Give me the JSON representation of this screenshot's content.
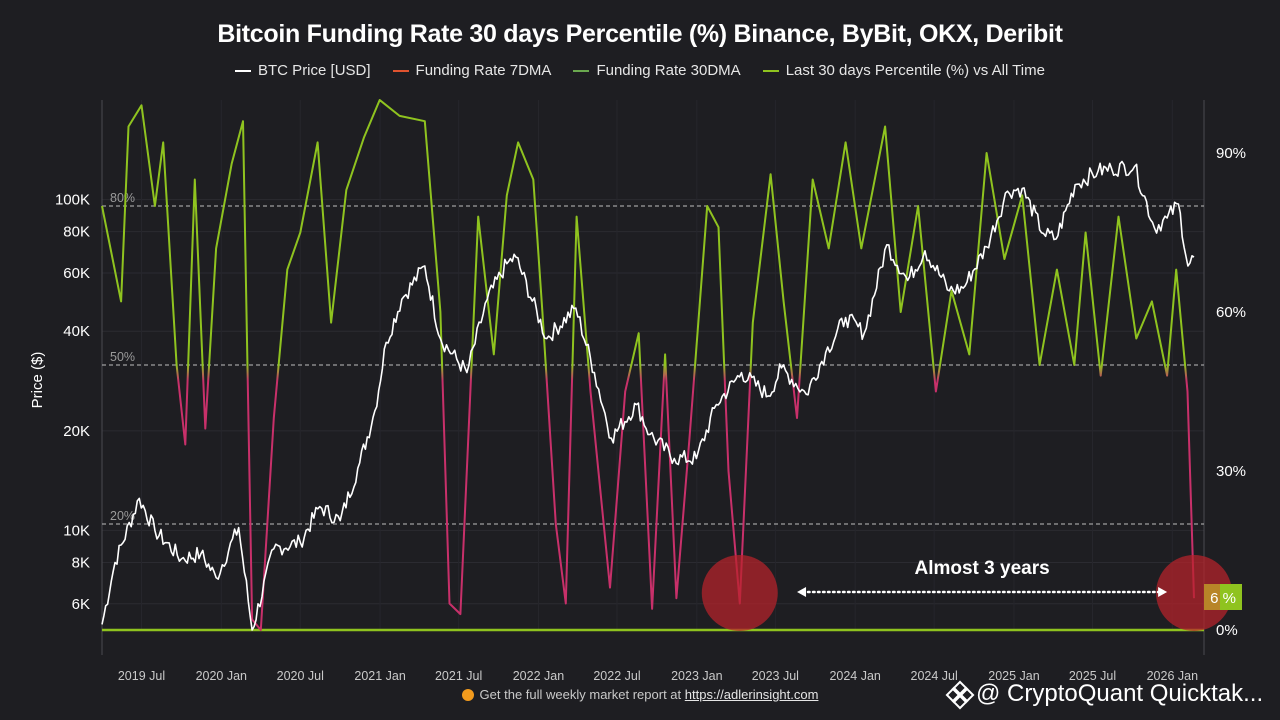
{
  "chart_data": {
    "type": "line",
    "title": "Bitcoin Funding Rate 30 days Percentile (%) Binance, ByBit, OKX, Deribit",
    "legend": [
      {
        "name": "BTC Price [USD]",
        "color": "#ffffff"
      },
      {
        "name": "Funding Rate 7DMA",
        "color": "#e0532f"
      },
      {
        "name": "Funding Rate 30DMA",
        "color": "#6aa84f"
      },
      {
        "name": "Last 30 days Percentile (%) vs All Time",
        "color": "#8fc31f"
      }
    ],
    "legend_placement": "top-center",
    "ylabel": "Price ($)",
    "y_left_scale": "log",
    "y_left_range": [
      5000,
      200000
    ],
    "y_left_ticks": [
      "100K",
      "80K",
      "60K",
      "40K",
      "20K",
      "10K",
      "8K",
      "6K"
    ],
    "y_right_range": [
      0,
      100
    ],
    "y_right_ticks": [
      "90%",
      "60%",
      "30%",
      "0%"
    ],
    "x_ticks": [
      "2019 Jul",
      "2020 Jan",
      "2020 Jul",
      "2021 Jan",
      "2021 Jul",
      "2022 Jan",
      "2022 Jul",
      "2023 Jan",
      "2023 Jul",
      "2024 Jan",
      "2024 Jul",
      "2025 Jan",
      "2025 Jul",
      "2026 Jan"
    ],
    "reference_lines": [
      {
        "label": "80%",
        "value": 80
      },
      {
        "label": "50%",
        "value": 50
      },
      {
        "label": "20%",
        "value": 20
      }
    ],
    "annotation": "Almost 3 years",
    "current_value_label": "6 %",
    "current_value": 6,
    "price_series": [
      [
        "2019-04-01",
        5200
      ],
      [
        "2019-05-01",
        8000
      ],
      [
        "2019-06-26",
        12500
      ],
      [
        "2019-08-01",
        10000
      ],
      [
        "2019-10-01",
        8200
      ],
      [
        "2019-11-15",
        8500
      ],
      [
        "2019-12-20",
        7200
      ],
      [
        "2020-02-10",
        10200
      ],
      [
        "2020-03-12",
        5000
      ],
      [
        "2020-05-01",
        8800
      ],
      [
        "2020-07-01",
        9200
      ],
      [
        "2020-08-15",
        11800
      ],
      [
        "2020-10-01",
        10700
      ],
      [
        "2020-11-15",
        16000
      ],
      [
        "2020-12-20",
        23000
      ],
      [
        "2021-01-15",
        37000
      ],
      [
        "2021-02-20",
        50000
      ],
      [
        "2021-04-14",
        63000
      ],
      [
        "2021-05-20",
        38000
      ],
      [
        "2021-07-20",
        30000
      ],
      [
        "2021-09-05",
        50000
      ],
      [
        "2021-10-20",
        64000
      ],
      [
        "2021-11-10",
        67000
      ],
      [
        "2022-01-20",
        38000
      ],
      [
        "2022-03-28",
        47000
      ],
      [
        "2022-05-10",
        30000
      ],
      [
        "2022-06-18",
        19000
      ],
      [
        "2022-08-15",
        24000
      ],
      [
        "2022-09-15",
        19500
      ],
      [
        "2022-11-10",
        16500
      ],
      [
        "2022-12-31",
        16500
      ],
      [
        "2023-02-15",
        24000
      ],
      [
        "2023-04-14",
        30000
      ],
      [
        "2023-06-15",
        25500
      ],
      [
        "2023-07-15",
        31000
      ],
      [
        "2023-09-10",
        25800
      ],
      [
        "2023-10-25",
        34500
      ],
      [
        "2023-12-10",
        44000
      ],
      [
        "2024-01-22",
        39500
      ],
      [
        "2024-03-14",
        73000
      ],
      [
        "2024-05-01",
        57000
      ],
      [
        "2024-06-10",
        70000
      ],
      [
        "2024-08-05",
        53000
      ],
      [
        "2024-09-06",
        54000
      ],
      [
        "2024-10-30",
        72000
      ],
      [
        "2024-12-17",
        106000
      ],
      [
        "2025-01-20",
        108000
      ],
      [
        "2025-03-10",
        79000
      ],
      [
        "2025-04-08",
        76000
      ],
      [
        "2025-05-22",
        111000
      ],
      [
        "2025-07-14",
        122000
      ],
      [
        "2025-08-14",
        124000
      ],
      [
        "2025-10-06",
        126000
      ],
      [
        "2025-11-21",
        82000
      ],
      [
        "2025-12-20",
        88000
      ],
      [
        "2026-01-15",
        97000
      ],
      [
        "2026-02-06",
        63000
      ],
      [
        "2026-02-20",
        67000
      ]
    ],
    "percentile_series": [
      [
        "2019-04-01",
        80
      ],
      [
        "2019-05-15",
        62
      ],
      [
        "2019-06-01",
        95
      ],
      [
        "2019-07-01",
        99
      ],
      [
        "2019-08-01",
        80
      ],
      [
        "2019-08-20",
        92
      ],
      [
        "2019-09-20",
        50
      ],
      [
        "2019-10-10",
        35
      ],
      [
        "2019-11-01",
        85
      ],
      [
        "2019-11-25",
        38
      ],
      [
        "2019-12-20",
        72
      ],
      [
        "2020-01-25",
        88
      ],
      [
        "2020-02-20",
        96
      ],
      [
        "2020-03-12",
        2
      ],
      [
        "2020-04-01",
        0
      ],
      [
        "2020-05-01",
        40
      ],
      [
        "2020-06-01",
        68
      ],
      [
        "2020-07-01",
        75
      ],
      [
        "2020-08-10",
        92
      ],
      [
        "2020-09-10",
        58
      ],
      [
        "2020-10-15",
        83
      ],
      [
        "2020-11-25",
        93
      ],
      [
        "2020-12-31",
        100
      ],
      [
        "2021-02-15",
        97
      ],
      [
        "2021-04-14",
        96
      ],
      [
        "2021-05-20",
        60
      ],
      [
        "2021-06-10",
        5
      ],
      [
        "2021-07-05",
        3
      ],
      [
        "2021-08-15",
        78
      ],
      [
        "2021-09-20",
        52
      ],
      [
        "2021-10-20",
        82
      ],
      [
        "2021-11-15",
        92
      ],
      [
        "2021-12-20",
        85
      ],
      [
        "2022-01-10",
        60
      ],
      [
        "2022-02-10",
        20
      ],
      [
        "2022-03-05",
        5
      ],
      [
        "2022-03-30",
        78
      ],
      [
        "2022-05-01",
        45
      ],
      [
        "2022-06-15",
        8
      ],
      [
        "2022-07-20",
        45
      ],
      [
        "2022-08-20",
        56
      ],
      [
        "2022-09-20",
        4
      ],
      [
        "2022-10-20",
        52
      ],
      [
        "2022-11-15",
        6
      ],
      [
        "2022-12-15",
        36
      ],
      [
        "2023-01-25",
        80
      ],
      [
        "2023-02-20",
        76
      ],
      [
        "2023-03-15",
        30
      ],
      [
        "2023-04-10",
        5
      ],
      [
        "2023-05-10",
        58
      ],
      [
        "2023-06-20",
        86
      ],
      [
        "2023-07-20",
        62
      ],
      [
        "2023-08-20",
        40
      ],
      [
        "2023-09-25",
        85
      ],
      [
        "2023-11-01",
        72
      ],
      [
        "2023-12-10",
        92
      ],
      [
        "2024-01-15",
        72
      ],
      [
        "2024-03-10",
        95
      ],
      [
        "2024-04-15",
        60
      ],
      [
        "2024-05-25",
        80
      ],
      [
        "2024-07-05",
        45
      ],
      [
        "2024-08-10",
        64
      ],
      [
        "2024-09-20",
        52
      ],
      [
        "2024-10-30",
        90
      ],
      [
        "2024-12-10",
        70
      ],
      [
        "2025-01-20",
        82
      ],
      [
        "2025-03-01",
        50
      ],
      [
        "2025-04-10",
        68
      ],
      [
        "2025-05-20",
        50
      ],
      [
        "2025-06-15",
        75
      ],
      [
        "2025-07-20",
        48
      ],
      [
        "2025-08-30",
        78
      ],
      [
        "2025-10-10",
        55
      ],
      [
        "2025-11-15",
        62
      ],
      [
        "2025-12-20",
        48
      ],
      [
        "2026-01-10",
        68
      ],
      [
        "2026-02-05",
        45
      ],
      [
        "2026-02-20",
        6
      ]
    ]
  },
  "footer": {
    "text": "Get the full weekly market report at",
    "link": "https://adlerinsight.com"
  },
  "watermark": "@ CryptoQuant Quicktak..."
}
